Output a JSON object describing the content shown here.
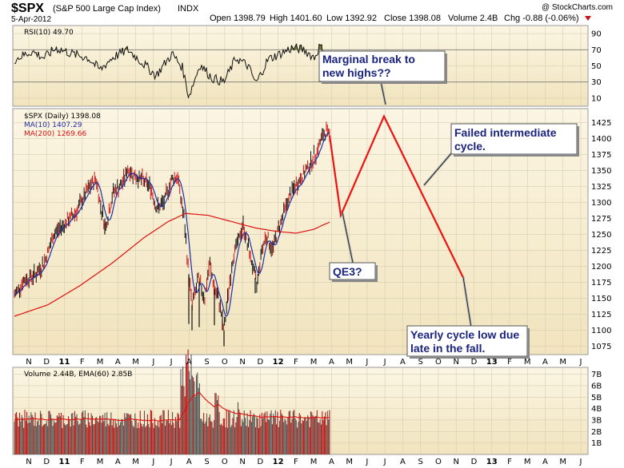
{
  "header": {
    "symbol": "$SPX",
    "name": "(S&P 500 Large Cap Index)",
    "exchange": "INDX",
    "date": "5-Apr-2012",
    "watermark": "@ StockCharts.com",
    "open": "Open 1398.79",
    "high": "High 1401.60",
    "low": "Low 1392.92",
    "close": "Close 1398.08",
    "volume": "Volume 2.4B",
    "chg": "Chg -0.88 (-0.06%)"
  },
  "rsi_panel": {
    "label": "RSI(10) 49.70",
    "ticks": [
      "90",
      "70",
      "50",
      "30",
      "10"
    ]
  },
  "price_panel": {
    "label": "$SPX (Daily) 1398.08",
    "legend": [
      {
        "text": "MA(10) 1407.29",
        "color": "#1f2fa8"
      },
      {
        "text": "MA(200) 1269.66",
        "color": "#dd1111"
      }
    ],
    "ticks": [
      "1425",
      "1400",
      "1375",
      "1350",
      "1325",
      "1300",
      "1275",
      "1250",
      "1225",
      "1200",
      "1175",
      "1150",
      "1125",
      "1100",
      "1075"
    ]
  },
  "volume_panel": {
    "label": "Volume 2.44B, EMA(60) 2.85B",
    "ticks": [
      "7B",
      "6B",
      "5B",
      "4B",
      "3B",
      "2B",
      "1B"
    ]
  },
  "x_axis": {
    "labels": [
      "N",
      "D",
      "11",
      "F",
      "M",
      "A",
      "M",
      "J",
      "J",
      "A",
      "S",
      "O",
      "N",
      "D",
      "12",
      "F",
      "M",
      "A",
      "M",
      "J",
      "J",
      "A",
      "S",
      "O",
      "N",
      "D",
      "13",
      "F",
      "M",
      "A",
      "M",
      "J"
    ]
  },
  "annotations": {
    "break": [
      "Marginal break to",
      "new highs??"
    ],
    "failed": [
      "Failed intermediate",
      "cycle."
    ],
    "qe3": [
      "QE3?"
    ],
    "yearly": [
      "Yearly cycle low due",
      "late in the fall."
    ]
  },
  "colors": {
    "panel_bg": "#f7efd6",
    "ma10": "#1f2fa8",
    "ma200": "#dd1111",
    "projection": "#ee1111",
    "up_bar": "#111111",
    "down_bar": "#cc1111",
    "annotation_text": "#1a237e"
  },
  "chart_data": {
    "type": "line",
    "title": "$SPX (S&P 500 Large Cap Index)",
    "ylim": [
      1062,
      1447
    ],
    "price_anchors": [
      {
        "x": 18,
        "y": 1155
      },
      {
        "x": 30,
        "y": 1178
      },
      {
        "x": 45,
        "y": 1188
      },
      {
        "x": 55,
        "y": 1205
      },
      {
        "x": 68,
        "y": 1252
      },
      {
        "x": 82,
        "y": 1268
      },
      {
        "x": 95,
        "y": 1285
      },
      {
        "x": 110,
        "y": 1320
      },
      {
        "x": 120,
        "y": 1338
      },
      {
        "x": 125,
        "y": 1300
      },
      {
        "x": 132,
        "y": 1262
      },
      {
        "x": 142,
        "y": 1318
      },
      {
        "x": 152,
        "y": 1328
      },
      {
        "x": 160,
        "y": 1352
      },
      {
        "x": 168,
        "y": 1342
      },
      {
        "x": 178,
        "y": 1335
      },
      {
        "x": 188,
        "y": 1325
      },
      {
        "x": 196,
        "y": 1290
      },
      {
        "x": 205,
        "y": 1300
      },
      {
        "x": 215,
        "y": 1338
      },
      {
        "x": 222,
        "y": 1340
      },
      {
        "x": 230,
        "y": 1275
      },
      {
        "x": 235,
        "y": 1200
      },
      {
        "x": 240,
        "y": 1140
      },
      {
        "x": 248,
        "y": 1180
      },
      {
        "x": 256,
        "y": 1150
      },
      {
        "x": 262,
        "y": 1205
      },
      {
        "x": 268,
        "y": 1165
      },
      {
        "x": 275,
        "y": 1140
      },
      {
        "x": 280,
        "y": 1100
      },
      {
        "x": 286,
        "y": 1165
      },
      {
        "x": 292,
        "y": 1220
      },
      {
        "x": 298,
        "y": 1240
      },
      {
        "x": 304,
        "y": 1265
      },
      {
        "x": 310,
        "y": 1230
      },
      {
        "x": 316,
        "y": 1200
      },
      {
        "x": 321,
        "y": 1170
      },
      {
        "x": 327,
        "y": 1225
      },
      {
        "x": 333,
        "y": 1250
      },
      {
        "x": 340,
        "y": 1225
      },
      {
        "x": 348,
        "y": 1258
      },
      {
        "x": 356,
        "y": 1290
      },
      {
        "x": 364,
        "y": 1315
      },
      {
        "x": 372,
        "y": 1330
      },
      {
        "x": 380,
        "y": 1345
      },
      {
        "x": 388,
        "y": 1362
      },
      {
        "x": 396,
        "y": 1380
      },
      {
        "x": 402,
        "y": 1400
      },
      {
        "x": 407,
        "y": 1412
      },
      {
        "x": 412,
        "y": 1405
      }
    ],
    "ma200_anchors": [
      {
        "x": 18,
        "y": 1122
      },
      {
        "x": 60,
        "y": 1140
      },
      {
        "x": 100,
        "y": 1170
      },
      {
        "x": 140,
        "y": 1205
      },
      {
        "x": 180,
        "y": 1245
      },
      {
        "x": 210,
        "y": 1270
      },
      {
        "x": 232,
        "y": 1283
      },
      {
        "x": 260,
        "y": 1280
      },
      {
        "x": 290,
        "y": 1270
      },
      {
        "x": 320,
        "y": 1260
      },
      {
        "x": 345,
        "y": 1255
      },
      {
        "x": 370,
        "y": 1252
      },
      {
        "x": 392,
        "y": 1258
      },
      {
        "x": 413,
        "y": 1270
      }
    ],
    "projection": [
      {
        "x": 412,
        "y": 1405
      },
      {
        "x": 426,
        "y": 1280
      },
      {
        "x": 480,
        "y": 1435
      },
      {
        "x": 580,
        "y": 1180
      }
    ],
    "rsi_anchors": [
      {
        "x": 18,
        "y": 58
      },
      {
        "x": 40,
        "y": 68
      },
      {
        "x": 55,
        "y": 60
      },
      {
        "x": 70,
        "y": 72
      },
      {
        "x": 90,
        "y": 65
      },
      {
        "x": 110,
        "y": 60
      },
      {
        "x": 125,
        "y": 45
      },
      {
        "x": 140,
        "y": 60
      },
      {
        "x": 160,
        "y": 70
      },
      {
        "x": 180,
        "y": 52
      },
      {
        "x": 195,
        "y": 38
      },
      {
        "x": 215,
        "y": 65
      },
      {
        "x": 228,
        "y": 48
      },
      {
        "x": 236,
        "y": 12
      },
      {
        "x": 250,
        "y": 52
      },
      {
        "x": 265,
        "y": 35
      },
      {
        "x": 280,
        "y": 30
      },
      {
        "x": 295,
        "y": 60
      },
      {
        "x": 310,
        "y": 50
      },
      {
        "x": 320,
        "y": 28
      },
      {
        "x": 335,
        "y": 58
      },
      {
        "x": 350,
        "y": 65
      },
      {
        "x": 365,
        "y": 72
      },
      {
        "x": 380,
        "y": 70
      },
      {
        "x": 393,
        "y": 60
      },
      {
        "x": 400,
        "y": 75
      },
      {
        "x": 407,
        "y": 62
      },
      {
        "x": 413,
        "y": 50
      }
    ]
  }
}
